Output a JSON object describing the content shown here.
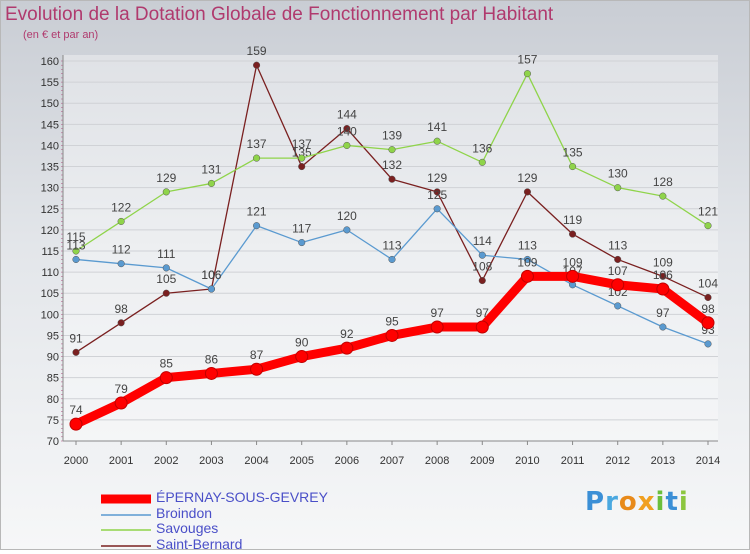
{
  "title": "Evolution de la Dotation Globale de Fonctionnement par Habitant",
  "subtitle": "(en € et par an)",
  "logo_text": "Proxiti",
  "chart_data": {
    "type": "line",
    "x": [
      "2000",
      "2001",
      "2002",
      "2003",
      "2004",
      "2005",
      "2006",
      "2007",
      "2008",
      "2009",
      "2010",
      "2011",
      "2012",
      "2013",
      "2014"
    ],
    "yticks": [
      70,
      75,
      80,
      85,
      90,
      95,
      100,
      105,
      110,
      115,
      120,
      125,
      130,
      135,
      140,
      145,
      150,
      155,
      160
    ],
    "ylim": [
      70,
      160
    ],
    "grid": "horizontal",
    "series": [
      {
        "name": "ÉPERNAY-SOUS-GEVREY",
        "color": "#ff0000",
        "values": [
          74,
          79,
          85,
          86,
          87,
          90,
          92,
          95,
          97,
          97,
          109,
          109,
          107,
          106,
          98
        ]
      },
      {
        "name": "Broindon",
        "color": "#5a9ad0",
        "values": [
          113,
          112,
          111,
          106,
          121,
          117,
          120,
          113,
          125,
          114,
          113,
          107,
          102,
          97,
          93
        ]
      },
      {
        "name": "Savouges",
        "color": "#8fd44a",
        "values": [
          115,
          122,
          129,
          131,
          137,
          137,
          140,
          139,
          141,
          136,
          157,
          135,
          130,
          128,
          121
        ]
      },
      {
        "name": "Saint-Bernard",
        "color": "#7a2020",
        "values": [
          91,
          98,
          105,
          106,
          159,
          135,
          144,
          132,
          129,
          108,
          129,
          119,
          113,
          109,
          104
        ]
      }
    ]
  }
}
